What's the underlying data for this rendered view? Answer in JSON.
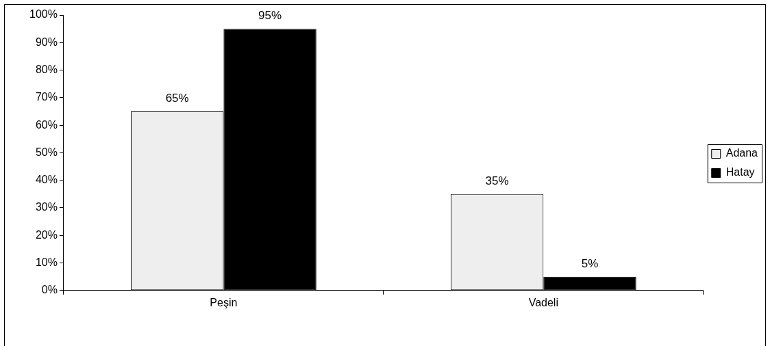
{
  "chart_data": {
    "type": "bar",
    "categories": [
      "Peşin",
      "Vadeli"
    ],
    "series": [
      {
        "name": "Adana",
        "color": "#eeeeee",
        "values": [
          65,
          35
        ],
        "value_labels": [
          "65%",
          "35%"
        ]
      },
      {
        "name": "Hatay",
        "color": "#000000",
        "values": [
          95,
          5
        ],
        "value_labels": [
          "95%",
          "5%"
        ]
      }
    ],
    "ylim": [
      0,
      100
    ],
    "yticks": [
      {
        "value": 0,
        "label": "0%"
      },
      {
        "value": 10,
        "label": "10%"
      },
      {
        "value": 20,
        "label": "20%"
      },
      {
        "value": 30,
        "label": "30%"
      },
      {
        "value": 40,
        "label": "40%"
      },
      {
        "value": 50,
        "label": "50%"
      },
      {
        "value": 60,
        "label": "60%"
      },
      {
        "value": 70,
        "label": "70%"
      },
      {
        "value": 80,
        "label": "80%"
      },
      {
        "value": 90,
        "label": "90%"
      },
      {
        "value": 100,
        "label": "100%"
      }
    ],
    "grid": false,
    "legend": "right"
  }
}
